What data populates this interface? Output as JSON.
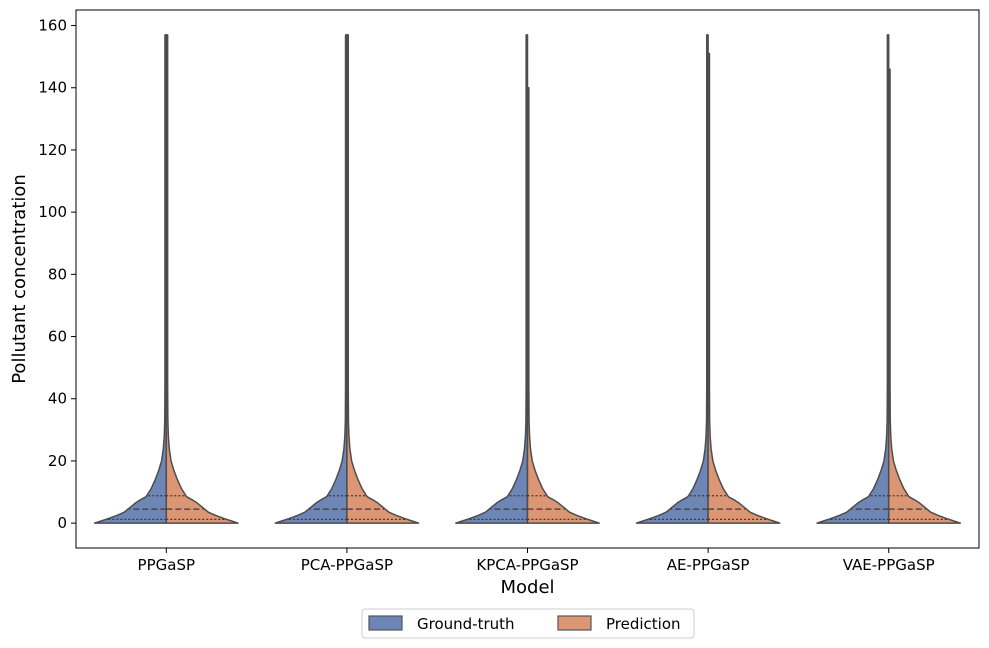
{
  "chart_data": {
    "type": "violin",
    "xlabel": "Model",
    "ylabel": "Pollutant concentration",
    "categories": [
      "PPGaSP",
      "PCA-PPGaSP",
      "KPCA-PPGaSP",
      "AE-PPGaSP",
      "VAE-PPGaSP"
    ],
    "ylim": [
      -8,
      165
    ],
    "yticks": [
      0,
      20,
      40,
      60,
      80,
      100,
      120,
      140,
      160
    ],
    "grid": false,
    "legend_position": "bottom-center",
    "series": [
      {
        "name": "Ground-truth",
        "color": "#6d86b5",
        "max": [
          157,
          157,
          157,
          157,
          157
        ],
        "q1": [
          1.2,
          1.2,
          1.2,
          1.2,
          1.2
        ],
        "median": [
          4.5,
          4.5,
          4.5,
          4.5,
          4.5
        ],
        "q3": [
          8.8,
          8.8,
          8.8,
          8.8,
          8.8
        ]
      },
      {
        "name": "Prediction",
        "color": "#dd9673",
        "max": [
          157,
          157,
          140,
          151,
          146
        ],
        "q1": [
          1.2,
          1.2,
          1.2,
          1.2,
          1.2
        ],
        "median": [
          4.5,
          4.5,
          4.5,
          4.5,
          4.5
        ],
        "q3": [
          8.8,
          8.8,
          8.8,
          8.8,
          8.8
        ]
      }
    ]
  }
}
